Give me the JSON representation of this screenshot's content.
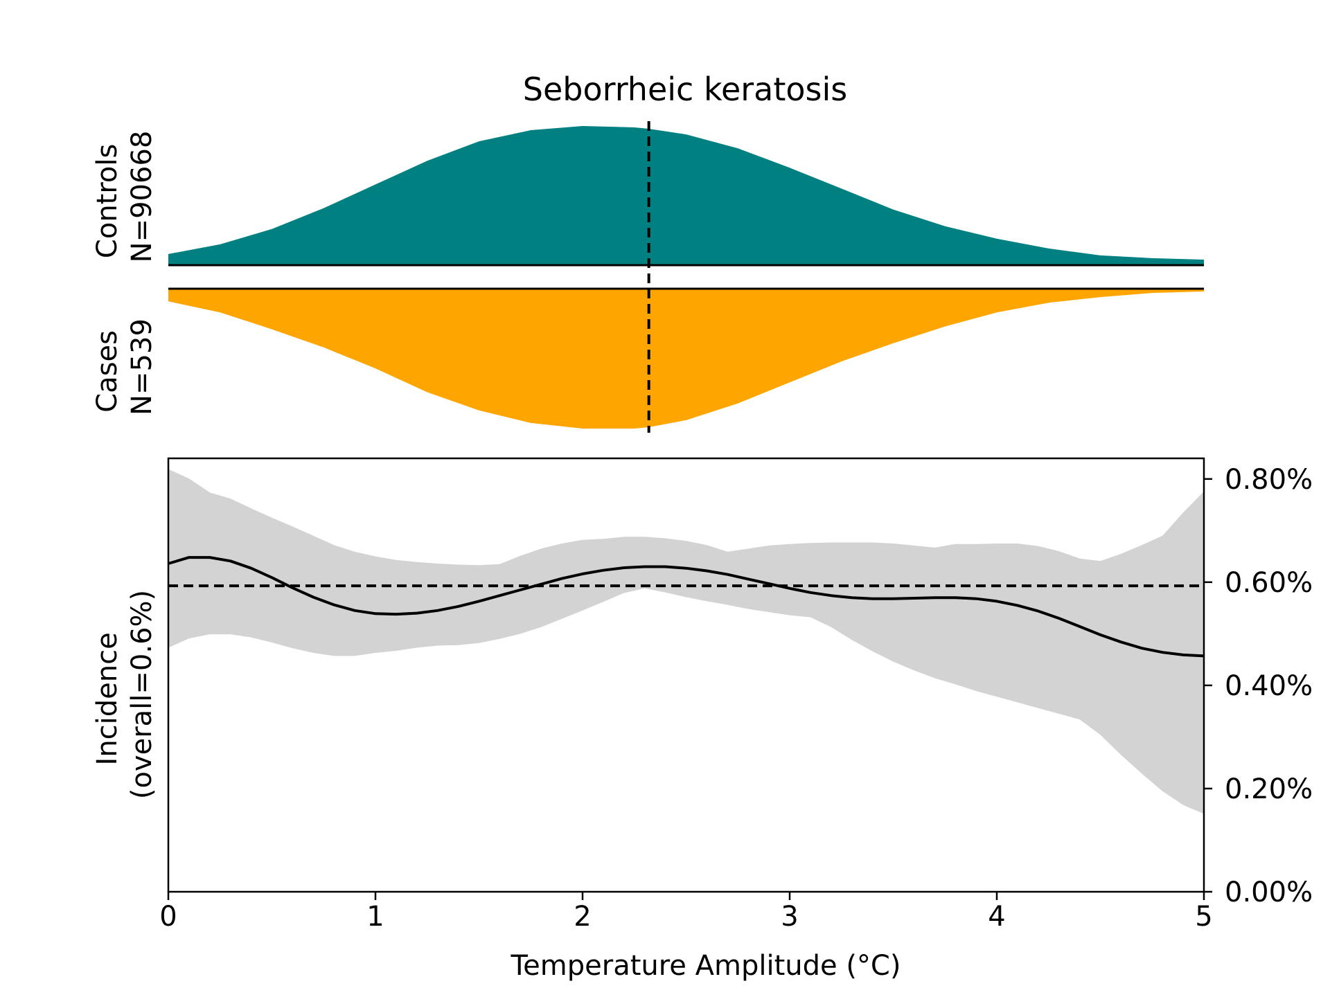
{
  "chart_data": {
    "title": "Seborrheic keratosis",
    "colors": {
      "controls": "#008080",
      "cases": "#FFA500",
      "ci_band": "#D3D3D3",
      "line": "#000000"
    },
    "distribution": {
      "type": "area",
      "x": [
        0,
        0.25,
        0.5,
        0.75,
        1,
        1.25,
        1.5,
        1.75,
        2,
        2.25,
        2.32,
        2.5,
        2.75,
        3,
        3.25,
        3.5,
        3.75,
        4,
        4.25,
        4.5,
        4.75,
        5
      ],
      "controls": {
        "label": "Controls\nN=90668",
        "line1": "Controls",
        "line2": "N=90668",
        "density": [
          0.08,
          0.15,
          0.26,
          0.41,
          0.58,
          0.75,
          0.89,
          0.97,
          1.0,
          0.99,
          0.98,
          0.94,
          0.84,
          0.7,
          0.55,
          0.4,
          0.28,
          0.19,
          0.12,
          0.07,
          0.05,
          0.04
        ]
      },
      "cases": {
        "label": "Cases\nN=539",
        "line1": "Cases",
        "line2": "N=539",
        "density": [
          0.09,
          0.17,
          0.29,
          0.42,
          0.57,
          0.74,
          0.87,
          0.96,
          1.0,
          1.0,
          0.99,
          0.94,
          0.82,
          0.67,
          0.52,
          0.39,
          0.27,
          0.17,
          0.1,
          0.06,
          0.03,
          0.02
        ]
      },
      "median_x": 2.32
    },
    "incidence": {
      "type": "line",
      "xlabel": "Temperature Amplitude (°C)",
      "ylabel": "Incidence\n(overall=0.6%)",
      "ylabel_line1": "Incidence",
      "ylabel_line2": "(overall=0.6%)",
      "xlim": [
        0,
        5
      ],
      "ylim": [
        0,
        0.84
      ],
      "xticks": [
        0,
        1,
        2,
        3,
        4,
        5
      ],
      "yticks": [
        0,
        0.2,
        0.4,
        0.6,
        0.8
      ],
      "ytick_labels": [
        "0.00%",
        "0.20%",
        "0.40%",
        "0.60%",
        "0.80%"
      ],
      "overall": 0.593,
      "x": [
        0,
        0.1,
        0.2,
        0.3,
        0.4,
        0.5,
        0.6,
        0.7,
        0.8,
        0.9,
        1.0,
        1.1,
        1.2,
        1.3,
        1.4,
        1.5,
        1.6,
        1.7,
        1.8,
        1.9,
        2.0,
        2.1,
        2.2,
        2.3,
        2.4,
        2.5,
        2.6,
        2.7,
        2.8,
        2.9,
        3.0,
        3.1,
        3.2,
        3.3,
        3.4,
        3.5,
        3.6,
        3.7,
        3.8,
        3.9,
        4.0,
        4.1,
        4.2,
        4.3,
        4.4,
        4.5,
        4.6,
        4.7,
        4.8,
        4.9,
        5.0
      ],
      "estimate": [
        0.636,
        0.648,
        0.648,
        0.641,
        0.627,
        0.609,
        0.589,
        0.571,
        0.556,
        0.545,
        0.539,
        0.538,
        0.54,
        0.545,
        0.553,
        0.563,
        0.574,
        0.585,
        0.596,
        0.607,
        0.616,
        0.623,
        0.628,
        0.63,
        0.63,
        0.627,
        0.622,
        0.615,
        0.606,
        0.597,
        0.588,
        0.58,
        0.574,
        0.57,
        0.568,
        0.568,
        0.569,
        0.57,
        0.57,
        0.568,
        0.563,
        0.555,
        0.544,
        0.53,
        0.514,
        0.498,
        0.484,
        0.472,
        0.464,
        0.459,
        0.457
      ],
      "ci_upper": [
        0.819,
        0.801,
        0.774,
        0.762,
        0.743,
        0.725,
        0.708,
        0.69,
        0.672,
        0.659,
        0.65,
        0.643,
        0.639,
        0.636,
        0.634,
        0.633,
        0.635,
        0.651,
        0.665,
        0.675,
        0.682,
        0.684,
        0.688,
        0.688,
        0.685,
        0.68,
        0.672,
        0.659,
        0.665,
        0.671,
        0.674,
        0.676,
        0.677,
        0.677,
        0.677,
        0.675,
        0.671,
        0.667,
        0.674,
        0.674,
        0.675,
        0.675,
        0.67,
        0.66,
        0.646,
        0.641,
        0.655,
        0.672,
        0.69,
        0.735,
        0.776
      ],
      "ci_lower": [
        0.473,
        0.491,
        0.499,
        0.499,
        0.493,
        0.483,
        0.472,
        0.463,
        0.457,
        0.457,
        0.463,
        0.467,
        0.473,
        0.477,
        0.478,
        0.482,
        0.49,
        0.5,
        0.513,
        0.529,
        0.545,
        0.562,
        0.579,
        0.588,
        0.58,
        0.571,
        0.563,
        0.556,
        0.548,
        0.542,
        0.536,
        0.532,
        0.513,
        0.488,
        0.466,
        0.446,
        0.429,
        0.414,
        0.402,
        0.389,
        0.378,
        0.367,
        0.356,
        0.345,
        0.334,
        0.304,
        0.265,
        0.229,
        0.195,
        0.168,
        0.151
      ]
    }
  }
}
